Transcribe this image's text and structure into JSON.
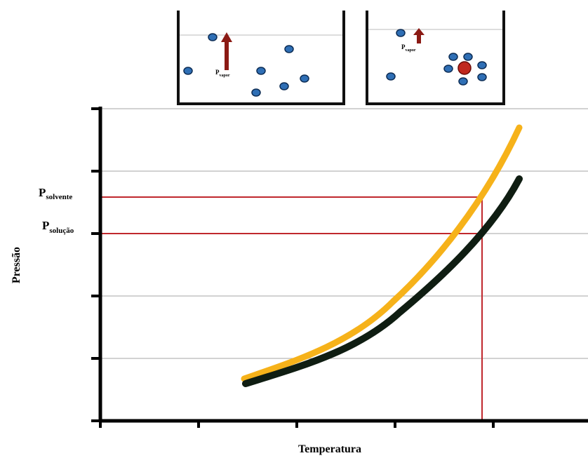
{
  "axes": {
    "y_label": "Pressão",
    "x_label": "Temperatura"
  },
  "levels": [
    {
      "symbol": "P",
      "subscript": "solvente"
    },
    {
      "symbol": "P",
      "subscript": "solução"
    }
  ],
  "beakers": [
    {
      "label": {
        "symbol": "P",
        "subscript": "vapor"
      }
    },
    {
      "label": {
        "symbol": "P",
        "subscript": "vapor"
      }
    }
  ]
}
